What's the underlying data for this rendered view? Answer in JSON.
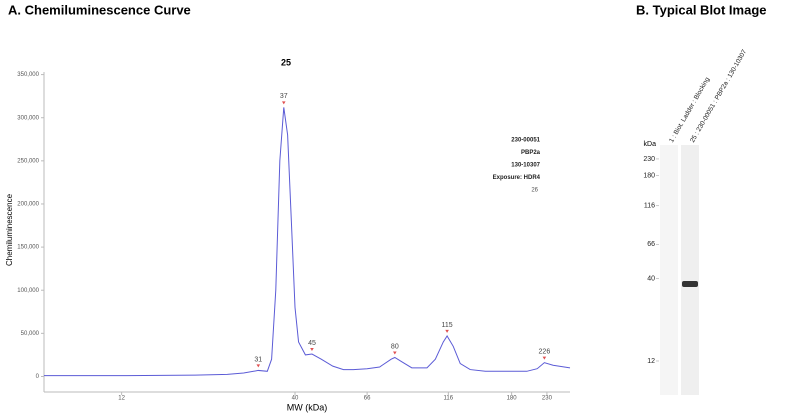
{
  "chart_data": [
    {
      "type": "line",
      "panel_title": "A. Chemiluminescence Curve",
      "title": "25",
      "xlabel": "MW (kDa)",
      "ylabel": "Chemiluminescence",
      "xscale": "log",
      "xlim": [
        7,
        270
      ],
      "xticks": [
        12,
        40,
        66,
        116,
        180,
        230
      ],
      "ylim": [
        -18000,
        353000
      ],
      "yticks": [
        {
          "value": 0,
          "label": "0"
        },
        {
          "value": 50000,
          "label": "50,000"
        },
        {
          "value": 100000,
          "label": "100,000"
        },
        {
          "value": 150000,
          "label": "150,000"
        },
        {
          "value": 200000,
          "label": "200,000"
        },
        {
          "value": 250000,
          "label": "250,000"
        },
        {
          "value": 300000,
          "label": "300,000"
        },
        {
          "value": 350000,
          "label": "350,000"
        }
      ],
      "x": [
        7,
        12,
        20,
        25,
        28,
        31,
        33,
        34,
        35,
        36,
        37,
        38,
        39,
        40,
        41,
        43,
        45,
        48,
        52,
        56,
        60,
        66,
        72,
        78,
        80,
        84,
        90,
        100,
        106,
        112,
        115,
        120,
        126,
        135,
        150,
        180,
        200,
        215,
        226,
        240,
        270
      ],
      "series": [
        {
          "name": "25",
          "color": "#5b5bd6",
          "values": [
            1000,
            1000,
            1500,
            2500,
            4000,
            7000,
            6000,
            20000,
            100000,
            250000,
            312000,
            280000,
            180000,
            80000,
            40000,
            25000,
            26000,
            20000,
            12000,
            8000,
            8000,
            9000,
            11000,
            20000,
            22000,
            17000,
            10000,
            10000,
            20000,
            40000,
            47000,
            35000,
            15000,
            8000,
            6000,
            6000,
            6000,
            9000,
            16000,
            13000,
            10000
          ]
        }
      ],
      "peaks": [
        {
          "x": 31,
          "y": 7000
        },
        {
          "x": 37,
          "y": 312000
        },
        {
          "x": 45,
          "y": 26000
        },
        {
          "x": 80,
          "y": 22000
        },
        {
          "x": 115,
          "y": 47000
        },
        {
          "x": 226,
          "y": 16000
        }
      ],
      "peak_color": "#e05050",
      "annotations": [
        "230-00051",
        "PBP2a",
        "130-10307",
        "Exposure: HDR4"
      ],
      "annotation_note": "26"
    },
    {
      "type": "blot",
      "panel_title": "B. Typical Blot Image",
      "ylabel": "kDa",
      "yscale": "log",
      "ylim": [
        7.3,
        282
      ],
      "yticks": [
        230,
        180,
        116,
        66,
        40,
        12
      ],
      "lanes": [
        {
          "label": "1 : Biot. Ladder : Blocking",
          "bands": []
        },
        {
          "label": "25 : 230-00051 : PBP2a : 130-10307",
          "bands": [
            37
          ]
        }
      ]
    }
  ]
}
